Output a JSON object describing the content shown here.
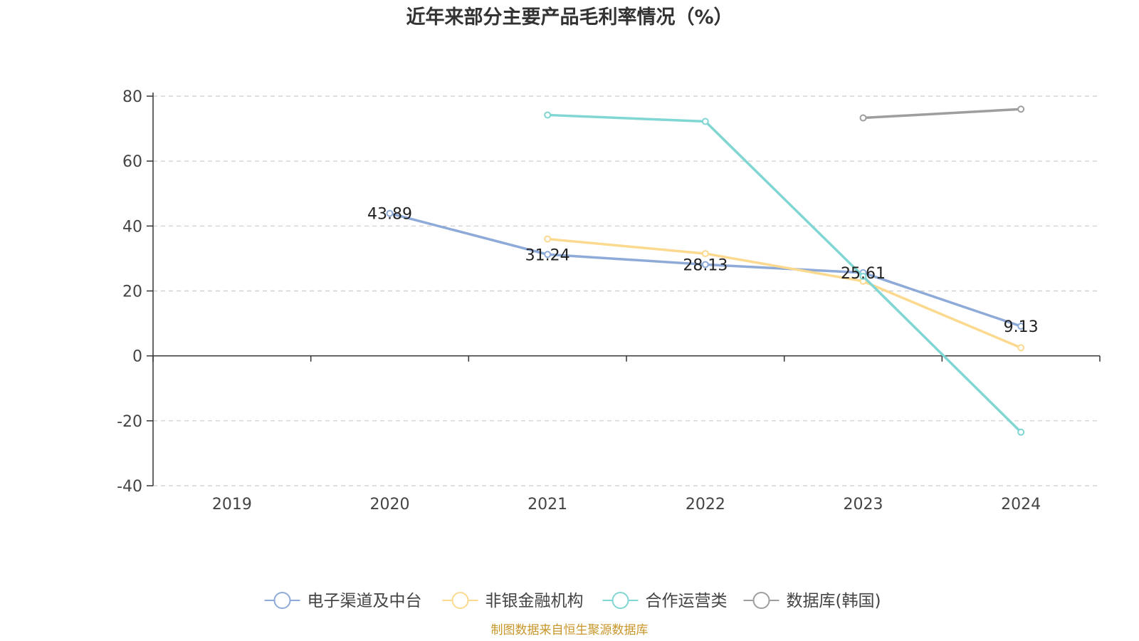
{
  "chart_data": {
    "type": "line",
    "title": "近年来部分主要产品毛利率情况（%）",
    "categories": [
      "2019",
      "2020",
      "2021",
      "2022",
      "2023",
      "2024"
    ],
    "ylim": [
      -40,
      80
    ],
    "yticks": [
      -40,
      -20,
      0,
      20,
      40,
      60,
      80
    ],
    "grid": true,
    "legend_position": "bottom",
    "series": [
      {
        "name": "电子渠道及中台",
        "color": "#8eaad8",
        "values": [
          null,
          43.89,
          31.24,
          28.13,
          25.61,
          9.13
        ],
        "labels": true
      },
      {
        "name": "非银金融机构",
        "color": "#fbd98e",
        "values": [
          null,
          null,
          36.0,
          31.5,
          23.0,
          2.5
        ],
        "labels": false
      },
      {
        "name": "合作运营类",
        "color": "#80d6d3",
        "values": [
          null,
          null,
          74.2,
          72.2,
          24.5,
          -23.5
        ],
        "labels": false
      },
      {
        "name": "数据库(韩国)",
        "color": "#9e9e9e",
        "values": [
          null,
          null,
          null,
          null,
          73.3,
          76.0
        ],
        "labels": false
      }
    ]
  },
  "source_text": "制图数据来自恒生聚源数据库"
}
